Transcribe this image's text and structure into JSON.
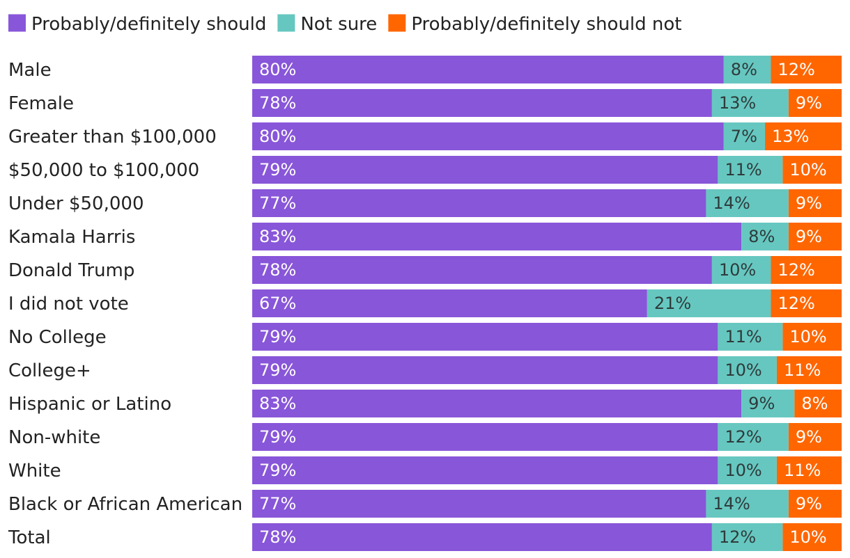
{
  "chart_data": {
    "type": "bar",
    "orientation": "horizontal",
    "stacked": true,
    "normalized": true,
    "legend_position": "top-left",
    "categories": [
      "Male",
      "Female",
      "Greater than $100,000",
      "$50,000 to $100,000",
      "Under $50,000",
      "Kamala Harris",
      "Donald Trump",
      "I did not vote",
      "No College",
      "College+",
      "Hispanic or Latino",
      "Non-white",
      "White",
      "Black or African American",
      "Total"
    ],
    "series": [
      {
        "name": "Probably/definitely should",
        "color": "#8856d9",
        "label_color": "#ffffff",
        "values": [
          80,
          78,
          80,
          79,
          77,
          83,
          78,
          67,
          79,
          79,
          83,
          79,
          79,
          77,
          78
        ],
        "labels": [
          "80%",
          "78%",
          "80%",
          "79%",
          "77%",
          "83%",
          "78%",
          "67%",
          "79%",
          "79%",
          "83%",
          "79%",
          "79%",
          "77%",
          "78%"
        ]
      },
      {
        "name": "Not sure",
        "color": "#66c7c0",
        "label_color": "#2e3b3b",
        "values": [
          8,
          13,
          7,
          11,
          14,
          8,
          10,
          21,
          11,
          10,
          9,
          12,
          10,
          14,
          12
        ],
        "labels": [
          "8%",
          "13%",
          "7%",
          "11%",
          "14%",
          "8%",
          "10%",
          "21%",
          "11%",
          "10%",
          "9%",
          "12%",
          "10%",
          "14%",
          "12%"
        ]
      },
      {
        "name": "Probably/definitely should not",
        "color": "#ff6600",
        "label_color": "#ffffff",
        "values": [
          12,
          9,
          13,
          10,
          9,
          9,
          12,
          12,
          10,
          11,
          8,
          9,
          11,
          9,
          10
        ],
        "labels": [
          "12%",
          "9%",
          "13%",
          "10%",
          "9%",
          "9%",
          "12%",
          "12%",
          "10%",
          "11%",
          "8%",
          "9%",
          "11%",
          "9%",
          "10%"
        ]
      }
    ]
  }
}
